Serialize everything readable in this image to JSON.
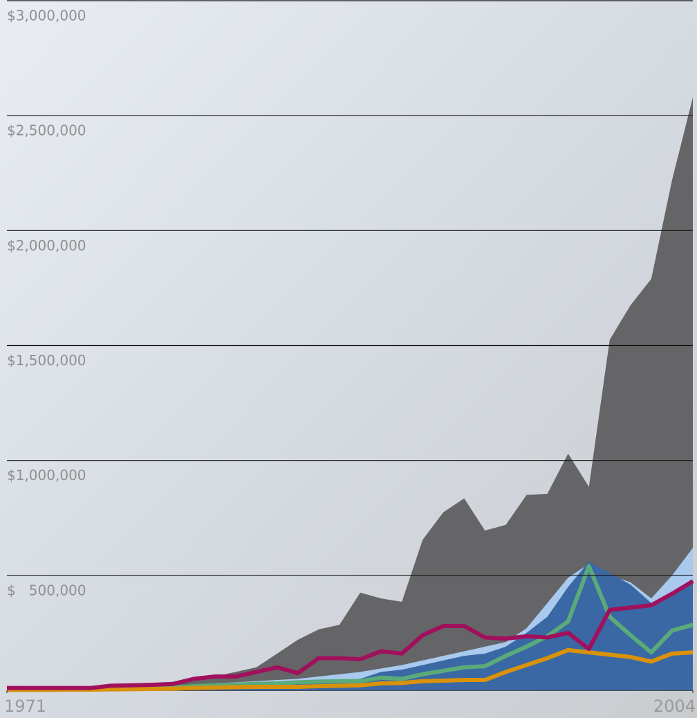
{
  "chart_data": {
    "type": "area",
    "x": [
      1971,
      1972,
      1973,
      1974,
      1975,
      1976,
      1977,
      1978,
      1979,
      1980,
      1981,
      1982,
      1983,
      1984,
      1985,
      1986,
      1987,
      1988,
      1989,
      1990,
      1991,
      1992,
      1993,
      1994,
      1995,
      1996,
      1997,
      1998,
      1999,
      2000,
      2001,
      2002,
      2003,
      2004
    ],
    "xlim": [
      1971,
      2004
    ],
    "xticks": [
      1971,
      2004
    ],
    "ylim": [
      0,
      3000000
    ],
    "yticks": [
      {
        "value": 500000,
        "label": "$   500,000"
      },
      {
        "value": 1000000,
        "label": "$1,000,000"
      },
      {
        "value": 1500000,
        "label": "$1,500,000"
      },
      {
        "value": 2000000,
        "label": "$2,000,000"
      },
      {
        "value": 2500000,
        "label": "$2,500,000"
      },
      {
        "value": 3000000,
        "label": "$3,000,000"
      }
    ],
    "grid": true,
    "series": [
      {
        "style": "area",
        "color": "#656567",
        "values": [
          5000,
          6000,
          7000,
          8000,
          9000,
          12000,
          15000,
          20000,
          25000,
          45000,
          60000,
          80000,
          100000,
          160000,
          220000,
          265000,
          285000,
          425000,
          400000,
          385000,
          655000,
          775000,
          835000,
          695000,
          720000,
          850000,
          855000,
          1030000,
          885000,
          1525000,
          1675000,
          1790000,
          2220000,
          2580000
        ]
      },
      {
        "style": "area",
        "color": "#a9c9ee",
        "values": [
          2000,
          2000,
          3000,
          3000,
          4000,
          5000,
          8000,
          12000,
          15000,
          25000,
          30000,
          35000,
          40000,
          45000,
          50000,
          60000,
          70000,
          80000,
          95000,
          110000,
          130000,
          150000,
          170000,
          190000,
          210000,
          270000,
          380000,
          490000,
          550000,
          500000,
          470000,
          400000,
          500000,
          620000
        ]
      },
      {
        "style": "area",
        "color": "#3a68a4",
        "values": [
          1000,
          1000,
          2000,
          2000,
          3000,
          4000,
          6000,
          8000,
          10000,
          15000,
          18000,
          20000,
          25000,
          30000,
          35000,
          40000,
          45000,
          50000,
          80000,
          90000,
          110000,
          130000,
          150000,
          160000,
          190000,
          250000,
          320000,
          450000,
          560000,
          510000,
          460000,
          380000,
          430000,
          480000
        ]
      },
      {
        "style": "line",
        "color": "#5aaa7a",
        "values": [
          3000,
          3000,
          4000,
          4000,
          5000,
          6000,
          8000,
          10000,
          12000,
          18000,
          22000,
          25000,
          28000,
          30000,
          35000,
          38000,
          40000,
          40000,
          55000,
          50000,
          70000,
          85000,
          100000,
          105000,
          150000,
          190000,
          235000,
          300000,
          540000,
          320000,
          240000,
          165000,
          260000,
          285000
        ]
      },
      {
        "style": "line",
        "color": "#d9920a",
        "values": [
          2000,
          2000,
          2000,
          3000,
          3000,
          4000,
          5000,
          6000,
          7000,
          10000,
          12000,
          14000,
          15000,
          15000,
          15000,
          18000,
          20000,
          22000,
          30000,
          32000,
          40000,
          42000,
          45000,
          45000,
          80000,
          110000,
          140000,
          175000,
          165000,
          155000,
          145000,
          125000,
          160000,
          165000
        ]
      },
      {
        "style": "line",
        "color": "#a0105c",
        "values": [
          10000,
          10000,
          10000,
          10000,
          10000,
          20000,
          22000,
          24000,
          28000,
          50000,
          60000,
          60000,
          80000,
          100000,
          75000,
          140000,
          140000,
          135000,
          170000,
          160000,
          240000,
          280000,
          280000,
          230000,
          225000,
          235000,
          230000,
          250000,
          180000,
          350000,
          360000,
          370000,
          420000,
          475000
        ]
      }
    ]
  }
}
